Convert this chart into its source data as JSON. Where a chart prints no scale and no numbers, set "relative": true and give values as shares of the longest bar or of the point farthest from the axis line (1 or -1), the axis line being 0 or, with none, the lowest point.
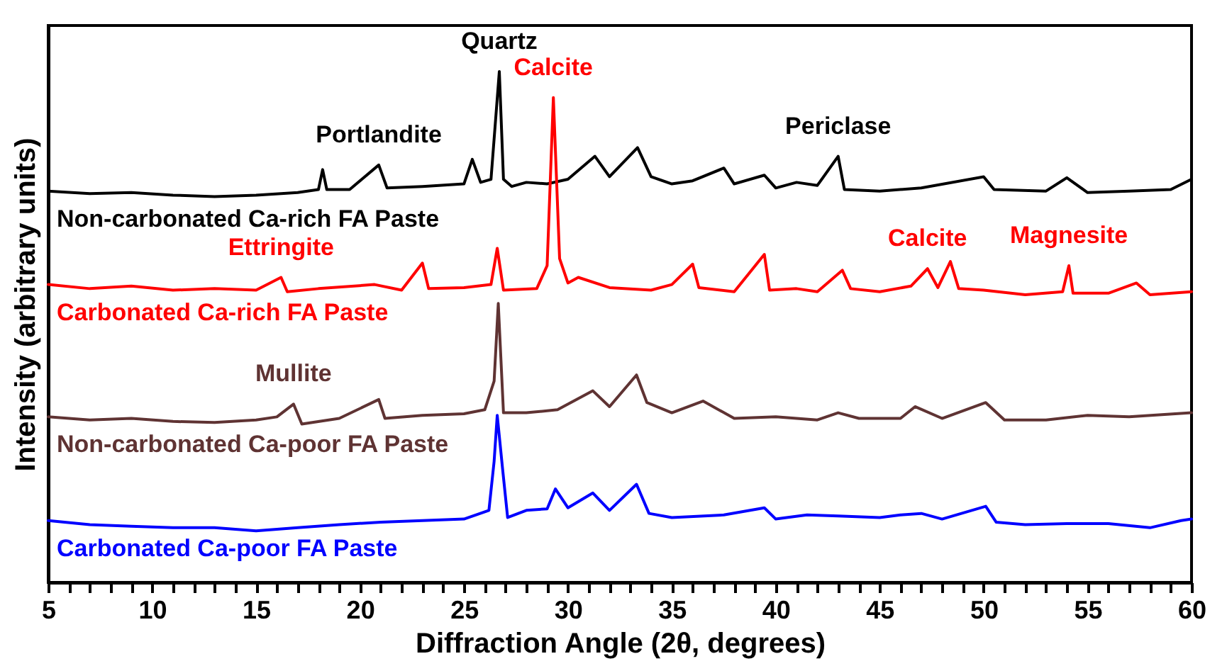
{
  "chart_data": {
    "type": "line",
    "relative": true,
    "xlabel": "Diffraction Angle (2θ, degrees)",
    "ylabel": "Intensity (arbitrary units)",
    "xlim": [
      5,
      60
    ],
    "xticks": [
      5,
      {
        "value": 6,
        "label": null
      },
      {
        "value": 7,
        "label": null
      },
      {
        "value": 8,
        "label": null
      },
      {
        "value": 9,
        "label": null
      },
      10,
      {
        "value": 11,
        "label": null
      },
      {
        "value": 12,
        "label": null
      },
      {
        "value": 13,
        "label": null
      },
      {
        "value": 14,
        "label": null
      },
      15,
      {
        "value": 16,
        "label": null
      },
      {
        "value": 17,
        "label": null
      },
      {
        "value": 18,
        "label": null
      },
      {
        "value": 19,
        "label": null
      },
      20,
      {
        "value": 21,
        "label": null
      },
      {
        "value": 22,
        "label": null
      },
      {
        "value": 23,
        "label": null
      },
      {
        "value": 24,
        "label": null
      },
      25,
      {
        "value": 26,
        "label": null
      },
      {
        "value": 27,
        "label": null
      },
      {
        "value": 28,
        "label": null
      },
      {
        "value": 29,
        "label": null
      },
      30,
      {
        "value": 31,
        "label": null
      },
      {
        "value": 32,
        "label": null
      },
      {
        "value": 33,
        "label": null
      },
      {
        "value": 34,
        "label": null
      },
      35,
      {
        "value": 36,
        "label": null
      },
      {
        "value": 37,
        "label": null
      },
      {
        "value": 38,
        "label": null
      },
      {
        "value": 39,
        "label": null
      },
      40,
      {
        "value": 41,
        "label": null
      },
      {
        "value": 42,
        "label": null
      },
      {
        "value": 43,
        "label": null
      },
      {
        "value": 44,
        "label": null
      },
      45,
      {
        "value": 46,
        "label": null
      },
      {
        "value": 47,
        "label": null
      },
      {
        "value": 48,
        "label": null
      },
      {
        "value": 49,
        "label": null
      },
      50,
      {
        "value": 51,
        "label": null
      },
      {
        "value": 52,
        "label": null
      },
      {
        "value": 53,
        "label": null
      },
      {
        "value": 54,
        "label": null
      },
      55,
      {
        "value": 56,
        "label": null
      },
      {
        "value": 57,
        "label": null
      },
      {
        "value": 58,
        "label": null
      },
      {
        "value": 59,
        "label": null
      },
      60
    ],
    "series": [
      {
        "name": "Non-carbonated Ca-rich FA Paste",
        "color": "#000000",
        "x": [
          5,
          7,
          9,
          11,
          13,
          15,
          17,
          18,
          18.2,
          18.4,
          19.5,
          20.9,
          21.3,
          23,
          25,
          25.4,
          25.8,
          26.3,
          26.7,
          26.9,
          27.3,
          28,
          29,
          30,
          31.3,
          32,
          33.35,
          34,
          35,
          36,
          37.5,
          38,
          39.45,
          40,
          41,
          42,
          43,
          43.3,
          45,
          47,
          50,
          50.5,
          53,
          54,
          55,
          57,
          59,
          60
        ],
        "values": [
          0.766,
          0.761,
          0.763,
          0.758,
          0.755,
          0.758,
          0.763,
          0.769,
          0.808,
          0.769,
          0.769,
          0.817,
          0.772,
          0.775,
          0.78,
          0.828,
          0.783,
          0.789,
          1,
          0.789,
          0.775,
          0.783,
          0.78,
          0.789,
          0.834,
          0.794,
          0.851,
          0.794,
          0.78,
          0.786,
          0.811,
          0.78,
          0.797,
          0.772,
          0.783,
          0.777,
          0.834,
          0.769,
          0.766,
          0.772,
          0.794,
          0.769,
          0.766,
          0.792,
          0.763,
          0.766,
          0.769,
          0.789
        ]
      },
      {
        "name": "Carbonated Ca-rich FA Paste",
        "color": "#ff0000",
        "x": [
          5,
          7,
          9,
          11,
          13,
          15,
          16.2,
          16.5,
          18,
          20.7,
          22,
          23,
          23.3,
          25,
          26.3,
          26.6,
          26.9,
          28.5,
          29,
          29.3,
          29.6,
          30,
          30.5,
          32,
          34,
          35,
          36,
          36.3,
          38,
          39.45,
          39.7,
          41,
          42,
          43.2,
          43.6,
          45,
          46.5,
          47.3,
          47.8,
          48.4,
          48.8,
          50,
          52,
          53.8,
          54.1,
          54.3,
          56,
          57.35,
          58,
          60
        ],
        "values": [
          0.583,
          0.575,
          0.58,
          0.572,
          0.575,
          0.572,
          0.597,
          0.569,
          0.575,
          0.583,
          0.572,
          0.625,
          0.575,
          0.577,
          0.583,
          0.654,
          0.572,
          0.575,
          0.62,
          0.949,
          0.634,
          0.586,
          0.597,
          0.577,
          0.572,
          0.583,
          0.623,
          0.577,
          0.569,
          0.642,
          0.572,
          0.575,
          0.569,
          0.611,
          0.575,
          0.569,
          0.58,
          0.614,
          0.577,
          0.628,
          0.575,
          0.572,
          0.563,
          0.569,
          0.62,
          0.566,
          0.566,
          0.586,
          0.563,
          0.569
        ]
      },
      {
        "name": "Non-carbonated Ca-poor FA Paste",
        "color": "#5f3333",
        "x": [
          5,
          7,
          9,
          11,
          13,
          15,
          16,
          16.8,
          17.2,
          19,
          20.9,
          21.2,
          23,
          25,
          26,
          26.45,
          26.65,
          26.9,
          28,
          29.5,
          31.2,
          32,
          33.3,
          33.8,
          35,
          36.5,
          38,
          40,
          42,
          43,
          44,
          46,
          46.7,
          48,
          50.1,
          51,
          53,
          55,
          57,
          60
        ],
        "values": [
          0.324,
          0.318,
          0.321,
          0.315,
          0.313,
          0.318,
          0.324,
          0.349,
          0.31,
          0.321,
          0.358,
          0.321,
          0.327,
          0.33,
          0.338,
          0.394,
          0.546,
          0.332,
          0.332,
          0.338,
          0.375,
          0.344,
          0.406,
          0.352,
          0.332,
          0.355,
          0.321,
          0.324,
          0.318,
          0.332,
          0.321,
          0.321,
          0.344,
          0.321,
          0.352,
          0.318,
          0.318,
          0.327,
          0.324,
          0.332
        ]
      },
      {
        "name": "Carbonated Ca-poor FA Paste",
        "color": "#0000ff",
        "x": [
          5,
          7,
          9,
          11,
          13,
          15,
          17,
          19,
          21,
          23,
          25,
          26.2,
          26.45,
          26.6,
          26.85,
          27.1,
          28,
          29,
          29.4,
          30,
          31.2,
          32,
          33.3,
          33.9,
          35,
          37.5,
          39.45,
          40,
          41.5,
          43,
          45,
          46,
          47,
          48,
          50.1,
          50.6,
          52,
          54,
          56,
          58,
          59.5,
          60
        ],
        "values": [
          0.121,
          0.113,
          0.11,
          0.107,
          0.107,
          0.101,
          0.107,
          0.113,
          0.118,
          0.121,
          0.124,
          0.141,
          0.237,
          0.327,
          0.225,
          0.127,
          0.141,
          0.144,
          0.183,
          0.146,
          0.175,
          0.141,
          0.192,
          0.135,
          0.127,
          0.132,
          0.146,
          0.124,
          0.132,
          0.13,
          0.127,
          0.132,
          0.135,
          0.124,
          0.149,
          0.118,
          0.113,
          0.115,
          0.115,
          0.107,
          0.121,
          0.124
        ]
      }
    ],
    "annotations": [
      {
        "text": "Quartz",
        "x": 26.7,
        "y": 1
      },
      {
        "text": "Calcite",
        "x": 29.3,
        "y": 0.949
      },
      {
        "text": "Portlandite",
        "x": 20.9,
        "y": 0.817
      },
      {
        "text": "Periclase",
        "x": 43,
        "y": 0.834
      },
      {
        "text": "Ettringite",
        "x": 16.2,
        "y": 0.597
      },
      {
        "text": "Calcite",
        "x": 47.3,
        "y": 0.614
      },
      {
        "text": "Magnesite",
        "x": 54.1,
        "y": 0.62
      },
      {
        "text": "Mullite",
        "x": 16.8,
        "y": 0.349
      }
    ]
  }
}
